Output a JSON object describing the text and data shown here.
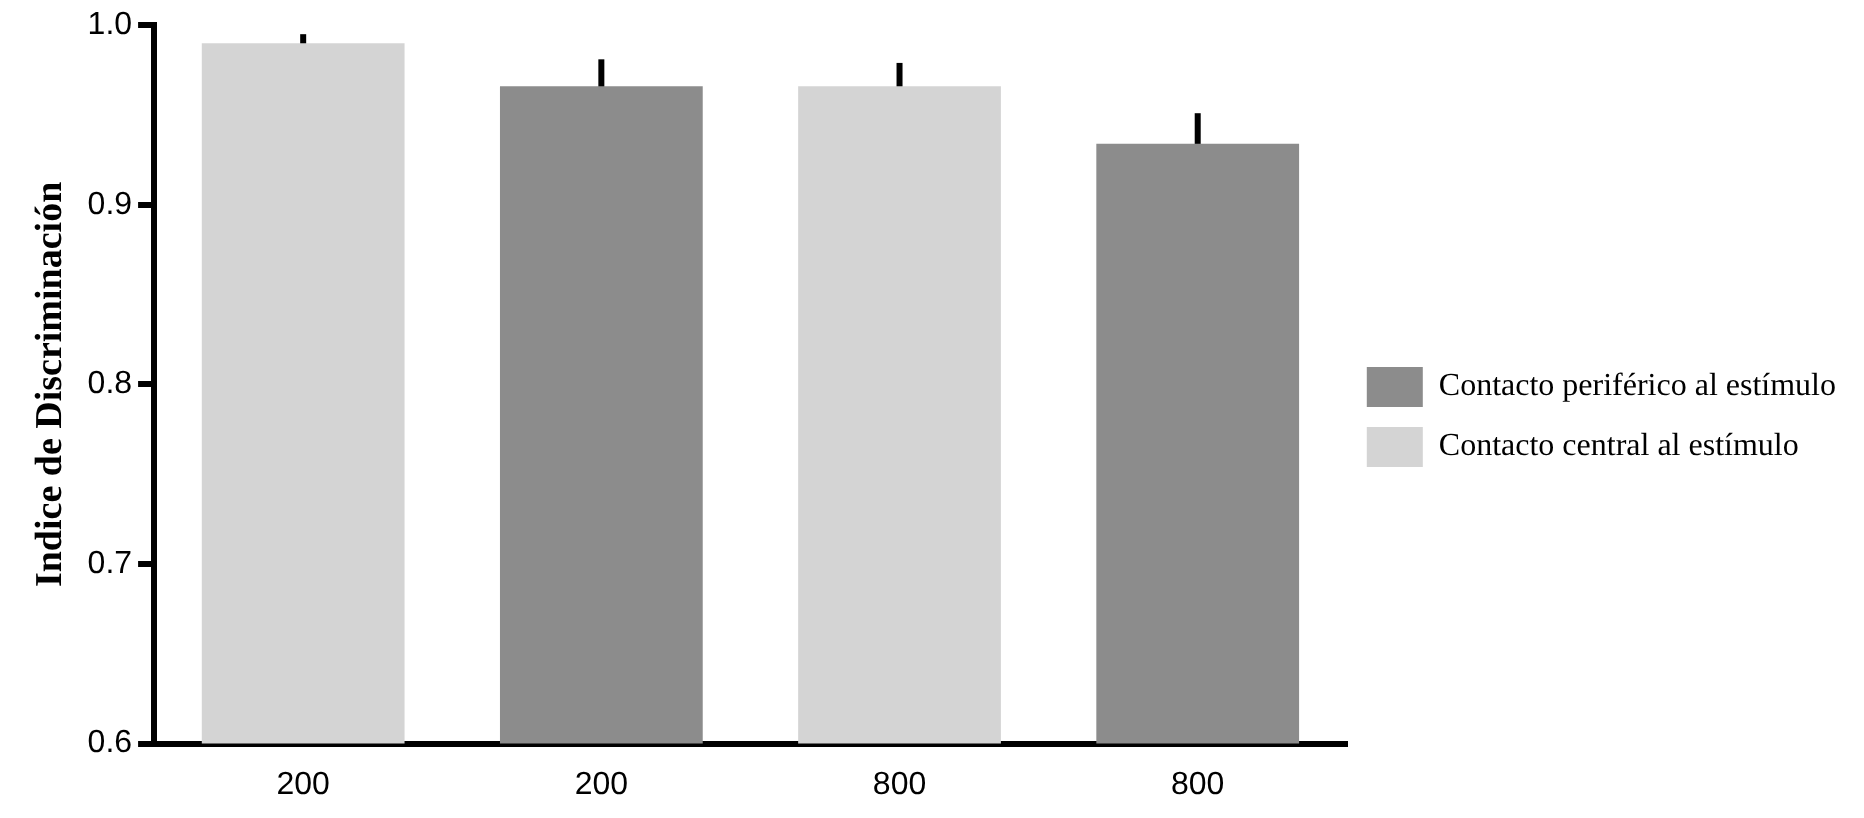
{
  "chart_data": {
    "type": "bar",
    "ylabel": "Indice de Discriminación",
    "categories": [
      "200",
      "200",
      "800",
      "800"
    ],
    "series": [
      {
        "name": "Contacto periférico al estímulo",
        "color": "#8c8c8c",
        "values": [
          null,
          0.966,
          null,
          0.934
        ],
        "errors": [
          null,
          0.015,
          null,
          0.017
        ]
      },
      {
        "name": "Contacto central al estímulo",
        "color": "#d4d4d4",
        "values": [
          0.99,
          null,
          0.966,
          null
        ],
        "errors": [
          0.005,
          null,
          0.013,
          null
        ]
      }
    ],
    "ylim": [
      0.6,
      1.0
    ],
    "yticks": [
      0.6,
      0.7,
      0.8,
      0.9,
      {
        "value": 1,
        "label": "1.0"
      }
    ],
    "grid": false,
    "legend": "right"
  }
}
